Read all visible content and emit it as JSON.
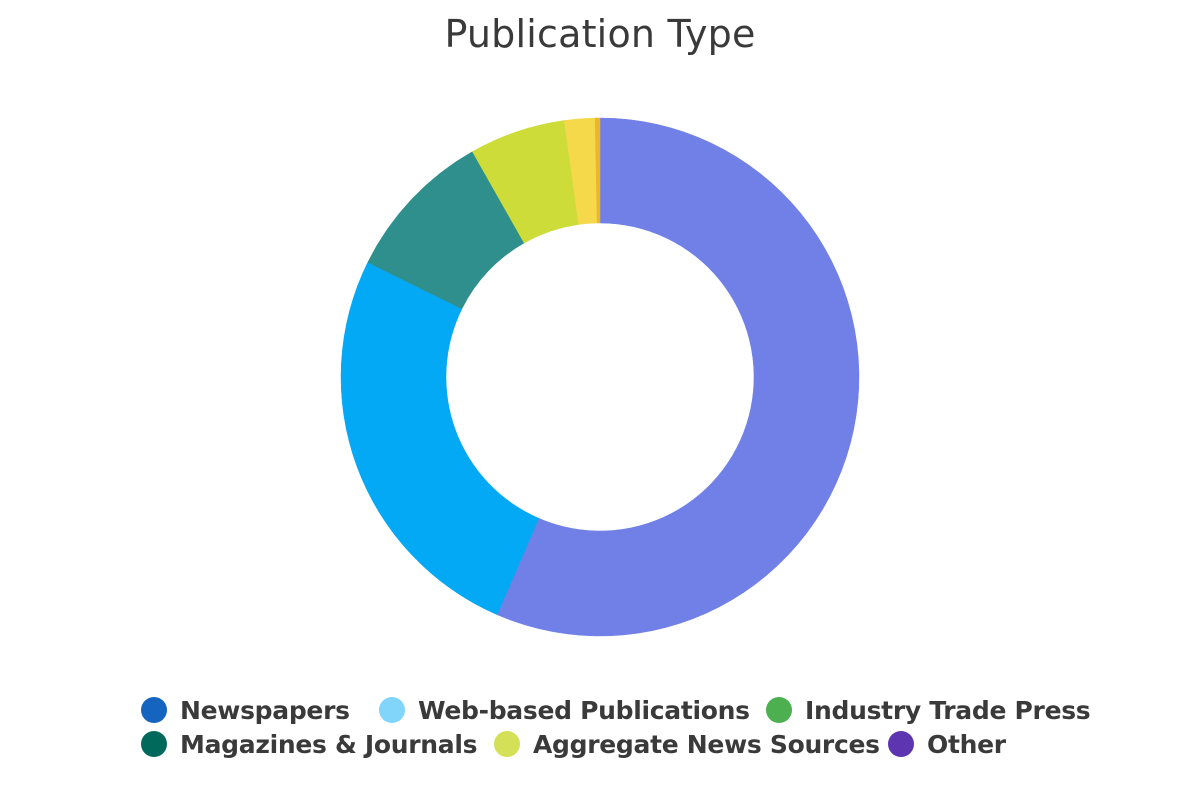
{
  "chart_data": {
    "type": "pie",
    "title": "Publication Type",
    "donut": true,
    "slices": [
      {
        "label": "Newspapers",
        "value": 56.5,
        "color": "#7080e6"
      },
      {
        "label": "Web-based Publications",
        "value": 25.8,
        "color": "#03a9f4"
      },
      {
        "label": "Industry Trade Press",
        "value": 0.0,
        "color": "#4caf50"
      },
      {
        "label": "Magazines & Journals",
        "value": 9.5,
        "color": "#2e8f8c"
      },
      {
        "label": "Aggregate News Sources",
        "value": 6.0,
        "color": "#cddc39"
      },
      {
        "label": "Other",
        "value": 1.9,
        "color": "#f5d94a"
      },
      {
        "label": "",
        "value": 0.3,
        "color": "#f0b429"
      }
    ],
    "legend": {
      "placement": "bottom",
      "entries": [
        {
          "label": "Newspapers",
          "color": "#1565c0"
        },
        {
          "label": "Web-based Publications",
          "color": "#81d4fa"
        },
        {
          "label": "Industry Trade Press",
          "color": "#4caf50"
        },
        {
          "label": "Magazines & Journals",
          "color": "#00695c"
        },
        {
          "label": "Aggregate News Sources",
          "color": "#d4e157"
        },
        {
          "label": "Other",
          "color": "#5e35b1"
        }
      ]
    }
  }
}
